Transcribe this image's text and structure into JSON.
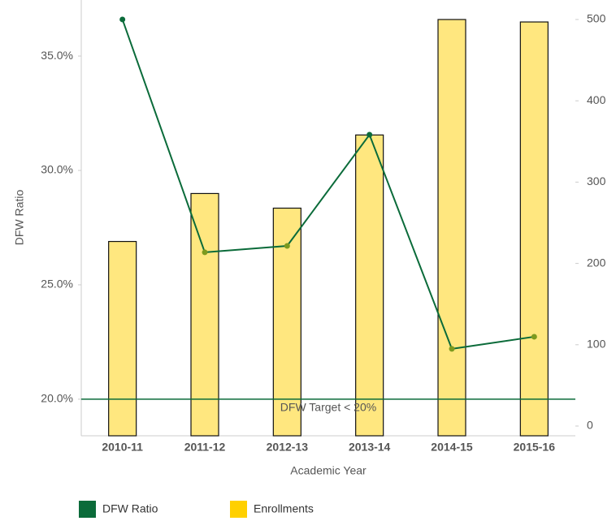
{
  "chart_data": {
    "type": "bar-line",
    "categories": [
      "2010-11",
      "2011-12",
      "2012-13",
      "2013-14",
      "2014-15",
      "2015-16"
    ],
    "series": [
      {
        "name": "DFW Ratio",
        "type": "line",
        "color": "#0b6b3a",
        "values": [
          36.6,
          26.42,
          26.7,
          31.56,
          22.2,
          22.73
        ]
      },
      {
        "name": "Enrollments",
        "type": "bar",
        "axis": "y2",
        "color": "#ffd000",
        "values": [
          227,
          286,
          268,
          358,
          500,
          497
        ]
      }
    ],
    "ylabel": "DFW Ratio",
    "xlabel": "Academic Year",
    "ylim": [
      18.4,
      37.45
    ],
    "yticks": [
      {
        "value": 20,
        "label": "20.0%"
      },
      {
        "value": 25,
        "label": "25.0%"
      },
      {
        "value": 30,
        "label": "30.0%"
      },
      {
        "value": 35,
        "label": "35.0%"
      }
    ],
    "y2lim": [
      -12,
      524
    ],
    "y2ticks": [
      0,
      100,
      200,
      300,
      400,
      500
    ],
    "target": {
      "value": 20,
      "label": "DFW Target < 20%"
    },
    "legend": "bottom"
  }
}
